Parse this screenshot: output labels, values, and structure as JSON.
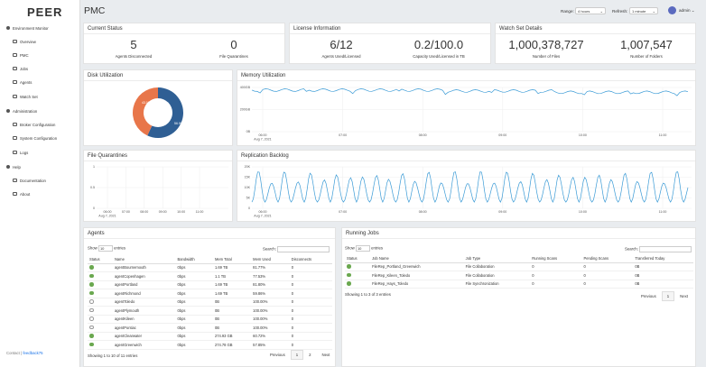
{
  "app": {
    "logo": "PEER",
    "title": "PMC",
    "footer_prefix": "Contact",
    "footer_link": "feedback75"
  },
  "sidebar": {
    "items": [
      {
        "label": "Environment Monitor",
        "icon": "chevron-icon"
      },
      {
        "label": "Overview",
        "icon": "eye-icon"
      },
      {
        "label": "PMC",
        "icon": "server-icon"
      },
      {
        "label": "Jobs",
        "icon": "list-icon"
      },
      {
        "label": "Agents",
        "icon": "agents-icon"
      },
      {
        "label": "Watch Set",
        "icon": "folder-icon"
      },
      {
        "label": "Administration",
        "icon": "user-icon"
      },
      {
        "label": "Broker Configuration",
        "icon": "broker-icon"
      },
      {
        "label": "System Configuration",
        "icon": "gear-icon"
      },
      {
        "label": "Logs",
        "icon": "log-icon"
      },
      {
        "label": "Help",
        "icon": "help-icon"
      },
      {
        "label": "Documentation",
        "icon": "doc-icon"
      },
      {
        "label": "About",
        "icon": "info-icon"
      }
    ]
  },
  "topbar": {
    "range_label": "Range:",
    "range_value": "4 hours",
    "refresh_label": "Refresh:",
    "refresh_value": "1 minute",
    "user": "admin"
  },
  "current_status": {
    "title": "Current Status",
    "agents_disconnected": "5",
    "agents_disconnected_label": "Agents Disconnected",
    "file_quarantines": "0",
    "file_quarantines_label": "File Quarantines"
  },
  "license": {
    "title": "License Information",
    "agents_used": "6/12",
    "agents_used_label": "Agents Used/Licensed",
    "capacity": "0.2/100.0",
    "capacity_label": "Capacity Used/Licensed in TB"
  },
  "watchset": {
    "title": "Watch Set Details",
    "files": "1,000,378,727",
    "files_label": "Number of Files",
    "folders": "1,007,547",
    "folders_label": "Number of Folders"
  },
  "disk": {
    "title": "Disk Utilization",
    "used_pct": "43.1%",
    "free_pct": "56.9%",
    "colors": {
      "used": "#e8764a",
      "free": "#2f5f94"
    }
  },
  "memory": {
    "title": "Memory Utilization",
    "y_ticks": [
      "400GB",
      "200GB",
      "0B"
    ],
    "x_ticks": [
      "06:00",
      "07:00",
      "08:00",
      "09:00",
      "10:00",
      "11:00"
    ],
    "date": "Aug 7, 2021"
  },
  "quarantines": {
    "title": "File Quarantines",
    "y_ticks": [
      "1",
      "0.5",
      "0"
    ],
    "x_ticks": [
      "06:00",
      "07:00",
      "08:00",
      "09:00",
      "10:00",
      "11:00"
    ],
    "date": "Aug 7, 2021"
  },
  "replication": {
    "title": "Replication Backlog",
    "y_ticks": [
      "20K",
      "15K",
      "10K",
      "5K",
      "0"
    ],
    "x_ticks": [
      "06:00",
      "07:00",
      "08:00",
      "09:00",
      "10:00",
      "11:00"
    ],
    "date": "Aug 7, 2021"
  },
  "agents": {
    "title": "Agents",
    "show": "Show",
    "entries_value": "10",
    "entries": "entries",
    "search": "Search:",
    "headers": [
      "Status",
      "Name",
      "Bandwidth",
      "Mem Total",
      "Mem Used",
      "Disconnects"
    ],
    "rows": [
      {
        "on": true,
        "name": "agentBournemouth",
        "bw": "0bps",
        "total": "1.69 TB",
        "used": "81.77%",
        "disc": "0"
      },
      {
        "on": true,
        "name": "agentCopenhagen",
        "bw": "0bps",
        "total": "1.1 TB",
        "used": "77.53%",
        "disc": "0"
      },
      {
        "on": true,
        "name": "agentPortland",
        "bw": "0bps",
        "total": "1.69 TB",
        "used": "81.80%",
        "disc": "0"
      },
      {
        "on": true,
        "name": "agentRichmond",
        "bw": "0bps",
        "total": "1.69 TB",
        "used": "59.86%",
        "disc": "0"
      },
      {
        "on": false,
        "name": "agentToledo",
        "bw": "0bps",
        "total": "0B",
        "used": "100.00%",
        "disc": "0"
      },
      {
        "on": false,
        "name": "agentPlymouth",
        "bw": "0bps",
        "total": "0B",
        "used": "100.00%",
        "disc": "0"
      },
      {
        "on": false,
        "name": "agentKileen",
        "bw": "0bps",
        "total": "0B",
        "used": "100.00%",
        "disc": "0"
      },
      {
        "on": false,
        "name": "agentPontiac",
        "bw": "0bps",
        "total": "0B",
        "used": "100.00%",
        "disc": "0"
      },
      {
        "on": true,
        "name": "agentClearwater",
        "bw": "0bps",
        "total": "274.93 GB",
        "used": "60.72%",
        "disc": "0"
      },
      {
        "on": true,
        "name": "agentGreenwich",
        "bw": "0bps",
        "total": "274.78 GB",
        "used": "57.85%",
        "disc": "0"
      }
    ],
    "info": "Showing 1 to 10 of 11 entries",
    "prev": "Previous",
    "p1": "1",
    "p2": "2",
    "next": "Next"
  },
  "jobs": {
    "title": "Running Jobs",
    "show": "Show",
    "entries_value": "10",
    "entries": "entries",
    "search": "Search:",
    "headers": [
      "Status",
      "Job Name",
      "Job Type",
      "Running Scans",
      "Pending Scans",
      "Transferred Today"
    ],
    "rows": [
      {
        "name": "FileRep_Portland_Greenwich",
        "type": "File Collaboration",
        "run": "0",
        "pend": "0",
        "trans": "0B"
      },
      {
        "name": "FileRep_Kileen_Toledo",
        "type": "File Collaboration",
        "run": "0",
        "pend": "0",
        "trans": "0B"
      },
      {
        "name": "FileRep_Hays_Toledo",
        "type": "File Synchronization",
        "run": "0",
        "pend": "0",
        "trans": "0B"
      }
    ],
    "info": "Showing 1 to 3 of 3 entries",
    "prev": "Previous",
    "p1": "1",
    "next": "Next"
  }
}
